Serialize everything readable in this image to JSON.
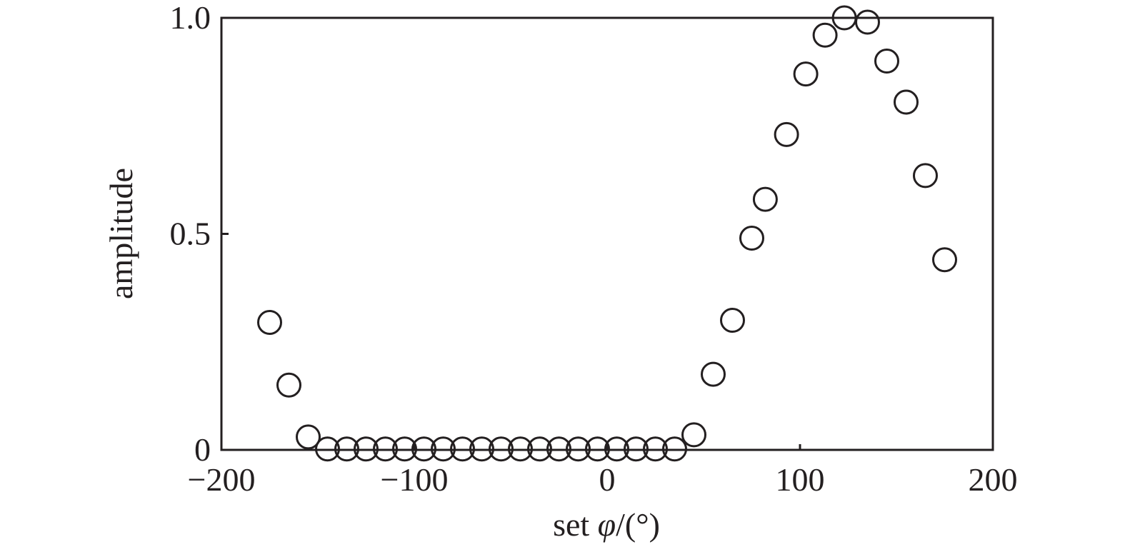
{
  "chart_data": {
    "type": "scatter",
    "xlabel": "set φ/(°)",
    "xlabel_parts": {
      "prefix": "set ",
      "symbol": "φ",
      "suffix": "/(°)"
    },
    "ylabel": "amplitude",
    "xlim": [
      -200,
      200
    ],
    "ylim": [
      0,
      1.0
    ],
    "x_ticks": [
      -200,
      -100,
      0,
      100,
      200
    ],
    "x_tick_labels": [
      "−200",
      "−100",
      "0",
      "100",
      "200"
    ],
    "y_ticks": [
      0,
      0.5,
      1.0
    ],
    "y_tick_labels": [
      "0",
      "0.5",
      "1.0"
    ],
    "grid": false,
    "marker": "open-circle",
    "series": [
      {
        "x": [
          -175,
          -165,
          -155,
          -145,
          -135,
          -125,
          -115,
          -105,
          -95,
          -85,
          -75,
          -65,
          -55,
          -45,
          -35,
          -25,
          -15,
          -5,
          5,
          15,
          25,
          35,
          45,
          55,
          65,
          75,
          82,
          93,
          103,
          113,
          123,
          135,
          145,
          155,
          165,
          175
        ],
        "y": [
          0.295,
          0.15,
          0.03,
          0.002,
          0.002,
          0.002,
          0.002,
          0.002,
          0.002,
          0.002,
          0.002,
          0.002,
          0.002,
          0.002,
          0.002,
          0.002,
          0.002,
          0.002,
          0.002,
          0.002,
          0.002,
          0.002,
          0.035,
          0.175,
          0.3,
          0.49,
          0.58,
          0.73,
          0.87,
          0.96,
          1.0,
          0.99,
          0.9,
          0.805,
          0.635,
          0.44
        ]
      }
    ]
  }
}
